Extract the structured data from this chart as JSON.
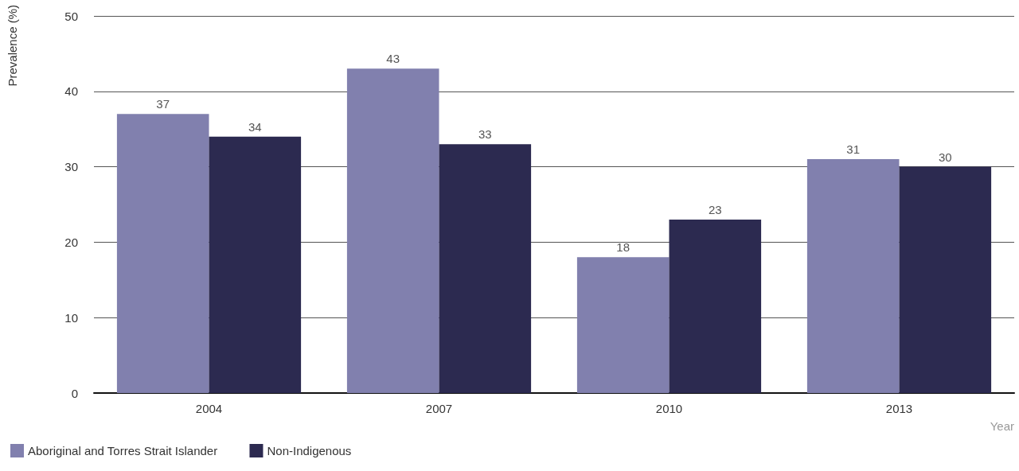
{
  "chart_data": {
    "type": "bar",
    "categories": [
      "2004",
      "2007",
      "2010",
      "2013"
    ],
    "series": [
      {
        "name": "Aboriginal and Torres Strait Islander",
        "color": "#8180ae",
        "values": [
          37,
          43,
          18,
          31
        ]
      },
      {
        "name": "Non-Indigenous",
        "color": "#2c2a50",
        "values": [
          34,
          33,
          23,
          30
        ]
      }
    ],
    "xlabel": "Year",
    "ylabel": "Prevalence (%)",
    "ylim": [
      0,
      50
    ],
    "yticks": [
      0,
      10,
      20,
      30,
      40,
      50
    ],
    "grid": "y",
    "legend": "bottom left",
    "data_labels": true
  }
}
